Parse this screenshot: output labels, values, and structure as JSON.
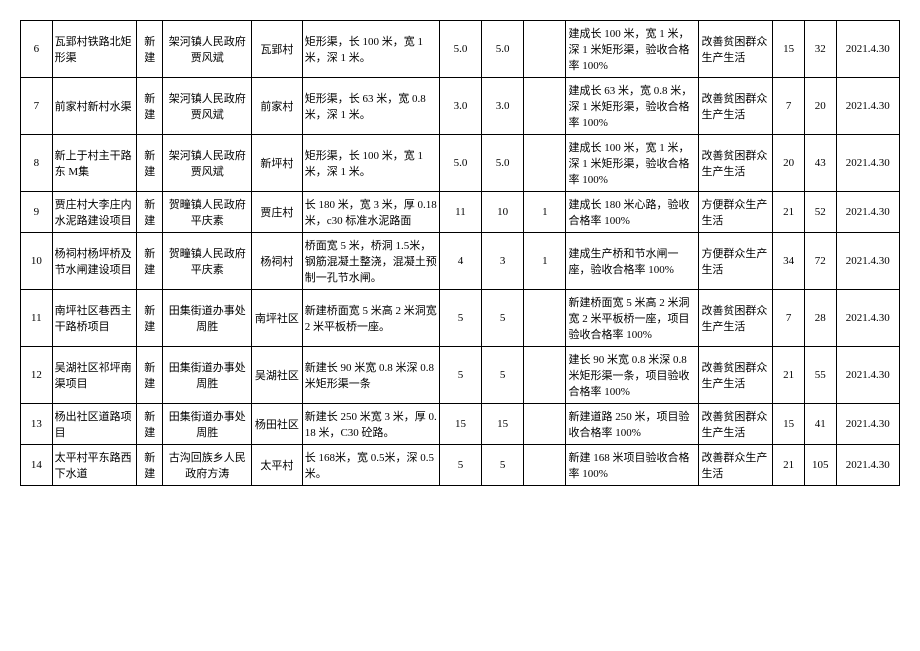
{
  "table": {
    "columns": [
      {
        "key": "idx",
        "class": "col-idx"
      },
      {
        "key": "name",
        "class": "col-name"
      },
      {
        "key": "type",
        "class": "col-type"
      },
      {
        "key": "dept",
        "class": "col-dept"
      },
      {
        "key": "loc",
        "class": "col-loc"
      },
      {
        "key": "spec",
        "class": "col-spec"
      },
      {
        "key": "num1",
        "class": "col-num1"
      },
      {
        "key": "num2",
        "class": "col-num2"
      },
      {
        "key": "num3",
        "class": "col-num3"
      },
      {
        "key": "result",
        "class": "col-result"
      },
      {
        "key": "effect",
        "class": "col-effect"
      },
      {
        "key": "n1",
        "class": "col-n1"
      },
      {
        "key": "n2",
        "class": "col-n2"
      },
      {
        "key": "date",
        "class": "col-date"
      }
    ],
    "rows": [
      {
        "idx": "6",
        "name": "瓦郢村铁路北矩形渠",
        "type": "新建",
        "dept": "架河镇人民政府贾风斌",
        "loc": "瓦郢村",
        "spec": "矩形渠，长 100 米，宽 1米，深 1 米。",
        "num1": "5.0",
        "num2": "5.0",
        "num3": "",
        "result": "建成长 100 米，宽 1 米，深 1 米矩形渠，验收合格率 100%",
        "effect": "改善贫困群众生产生活",
        "n1": "15",
        "n2": "32",
        "date": "2021.4.30"
      },
      {
        "idx": "7",
        "name": "前家村新村水渠",
        "type": "新建",
        "dept": "架河镇人民政府贾风斌",
        "loc": "前家村",
        "spec": "矩形渠，长 63 米，宽 0.8 米，深 1 米。",
        "num1": "3.0",
        "num2": "3.0",
        "num3": "",
        "result": "建成长 63 米，宽 0.8 米，深 1 米矩形渠，验收合格率 100%",
        "effect": "改善贫困群众生产生活",
        "n1": "7",
        "n2": "20",
        "date": "2021.4.30"
      },
      {
        "idx": "8",
        "name": "新上于村主干路东\nM集",
        "type": "新建",
        "dept": "架河镇人民政府贾风斌",
        "loc": "新坪村",
        "spec": "矩形渠，长 100 米，宽 1米，深 1 米。",
        "num1": "5.0",
        "num2": "5.0",
        "num3": "",
        "result": "建成长 100 米，宽 1 米，深 1 米矩形渠，验收合格率 100%",
        "effect": "改善贫困群众生产生活",
        "n1": "20",
        "n2": "43",
        "date": "2021.4.30"
      },
      {
        "idx": "9",
        "name": "贾庄村大李庄内水泥路建设项目",
        "type": "新建",
        "dept": "贺疃镇人民政府平庆素",
        "loc": "贾庄村",
        "spec": "长 180 米，宽 3 米，厚 0.18 米，c30 标准水泥路面",
        "num1": "11",
        "num2": "10",
        "num3": "1",
        "result": "建成长 180 米心路，验收合格率 100%",
        "effect": "方便群众生产生活",
        "n1": "21",
        "n2": "52",
        "date": "2021.4.30"
      },
      {
        "idx": "10",
        "name": "杨祠村杨坪桥及节水闸建设项目",
        "type": "新建",
        "dept": "贺疃镇人民政府平庆素",
        "loc": "杨祠村",
        "spec": "桥面宽 5 米，桥洞 1.5米，钢筋混凝土整浇，混凝土预制一孔节水闸。",
        "num1": "4",
        "num2": "3",
        "num3": "1",
        "result": "建成生产桥和节水闸一座，验收合格率 100%",
        "effect": "方便群众生产生活",
        "n1": "34",
        "n2": "72",
        "date": "2021.4.30"
      },
      {
        "idx": "11",
        "name": "南坪社区巷西主干路桥项目",
        "type": "新建",
        "dept": "田集街道办事处周胜",
        "loc": "南坪社区",
        "spec": "新建桥面宽 5 米高 2 米洞宽 2 米平板桥一座。",
        "num1": "5",
        "num2": "5",
        "num3": "",
        "result": "新建桥面宽 5 米高 2 米洞宽 2 米平板桥一座，项目验收合格率 100%",
        "effect": "改善贫困群众生产生活",
        "n1": "7",
        "n2": "28",
        "date": "2021.4.30"
      },
      {
        "idx": "12",
        "name": "吴湖社区祁坪南渠项目",
        "type": "新建",
        "dept": "田集街道办事处周胜",
        "loc": "吴湖社区",
        "spec": "新建长 90 米宽 0.8 米深 0.8 米矩形渠一条",
        "num1": "5",
        "num2": "5",
        "num3": "",
        "result": "建长 90 米宽 0.8 米深 0.8 米矩形渠一条，项目验收合格率 100%",
        "effect": "改善贫困群众生产生活",
        "n1": "21",
        "n2": "55",
        "date": "2021.4.30"
      },
      {
        "idx": "13",
        "name": "杨出社区道路项目",
        "type": "新建",
        "dept": "田集街道办事处周胜",
        "loc": "杨田社区",
        "spec": "新建长 250 米宽 3 米，厚 0.18 米，C30 砼路。",
        "num1": "15",
        "num2": "15",
        "num3": "",
        "result": "新建道路 250 米，项目验收合格率 100%",
        "effect": "改善贫困群众生产生活",
        "n1": "15",
        "n2": "41",
        "date": "2021.4.30"
      },
      {
        "idx": "14",
        "name": "太平村平东路西下水道",
        "type": "新建",
        "dept": "古沟回族乡人民政府方涛",
        "loc": "太平村",
        "spec": "长 168米，宽 0.5米，深 0.5米。",
        "num1": "5",
        "num2": "5",
        "num3": "",
        "result": "新建 168 米项目验收合格率 100%",
        "effect": "改善群众生产生活",
        "n1": "21",
        "n2": "105",
        "date": "2021.4.30"
      }
    ]
  },
  "styling": {
    "border_color": "#000000",
    "background_color": "#ffffff",
    "font_size": 11,
    "font_family": "SimSun"
  }
}
